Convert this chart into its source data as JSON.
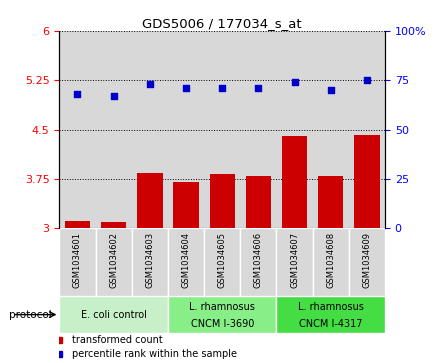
{
  "title": "GDS5006 / 177034_s_at",
  "samples": [
    "GSM1034601",
    "GSM1034602",
    "GSM1034603",
    "GSM1034604",
    "GSM1034605",
    "GSM1034606",
    "GSM1034607",
    "GSM1034608",
    "GSM1034609"
  ],
  "transformed_count": [
    3.12,
    3.1,
    3.84,
    3.7,
    3.82,
    3.8,
    4.4,
    3.8,
    4.42
  ],
  "percentile_rank": [
    68,
    67,
    73,
    71,
    71,
    71,
    74,
    70,
    75
  ],
  "ylim_left": [
    3.0,
    6.0
  ],
  "ylim_right": [
    0,
    100
  ],
  "yticks_left": [
    3.0,
    3.75,
    4.5,
    5.25,
    6.0
  ],
  "yticks_right": [
    0,
    25,
    50,
    75,
    100
  ],
  "bar_color": "#cc0000",
  "dot_color": "#0000cc",
  "col_bg_color": "#d8d8d8",
  "protocol_colors": [
    "#c8f0c8",
    "#88ee88",
    "#44dd44"
  ],
  "protocol_labels": [
    "E. coli control",
    "L. rhamnosus\nCNCM I-3690",
    "L. rhamnosus\nCNCM I-4317"
  ],
  "protocol_starts": [
    0,
    3,
    6
  ],
  "protocol_ends": [
    3,
    6,
    9
  ],
  "legend_bar_label": "transformed count",
  "legend_dot_label": "percentile rank within the sample",
  "protocol_label": "protocol"
}
